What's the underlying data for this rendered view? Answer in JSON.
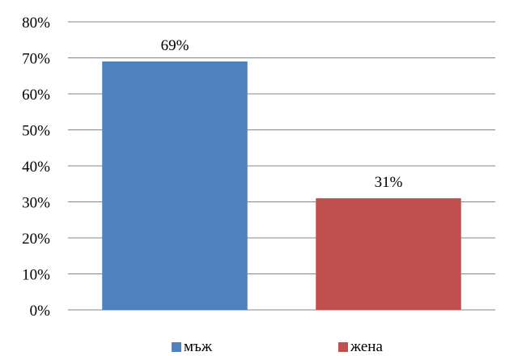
{
  "chart_data": {
    "type": "bar",
    "categories": [
      "мъж",
      "жена"
    ],
    "values": [
      69,
      31
    ],
    "data_labels": [
      "69%",
      "31%"
    ],
    "colors": [
      "#4F81BD",
      "#C0504D"
    ],
    "ylim": [
      0,
      80
    ],
    "yticks": [
      "0%",
      "10%",
      "20%",
      "30%",
      "40%",
      "50%",
      "60%",
      "70%",
      "80%"
    ],
    "grid": true,
    "legend": {
      "position": "bottom",
      "entries": [
        "мъж",
        "жена"
      ]
    },
    "title": "",
    "xlabel": "",
    "ylabel": ""
  }
}
